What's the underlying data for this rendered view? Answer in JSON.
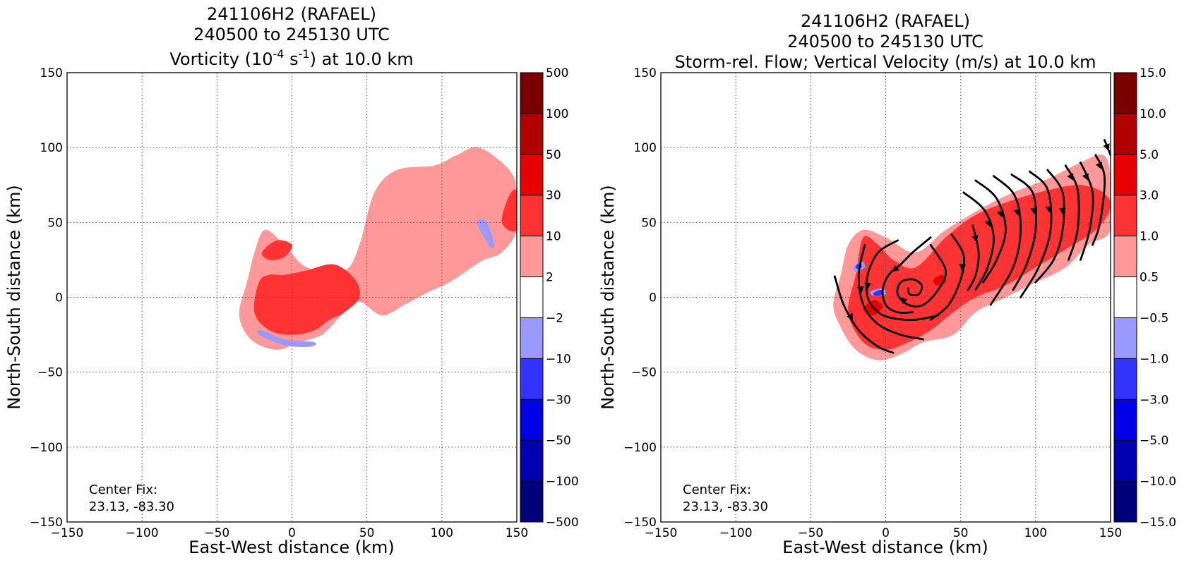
{
  "chart_data": [
    {
      "type": "heatmap",
      "title_lines": [
        "241106H2 (RAFAEL)",
        "240500 to 245130 UTC"
      ],
      "title_line3": {
        "prefix": "Vorticity (10",
        "exp1": "-4",
        "mid": " s",
        "exp2": "-1",
        "suffix": ") at 10.0 km"
      },
      "xlabel": "East-West distance (km)",
      "ylabel": "North-South distance (km)",
      "xlim": [
        -150,
        150
      ],
      "ylim": [
        -150,
        150
      ],
      "x_ticks": [
        "−150",
        "−100",
        "−50",
        "0",
        "50",
        "100",
        "150"
      ],
      "y_ticks": [
        "−150",
        "−100",
        "−50",
        "0",
        "50",
        "100",
        "150"
      ],
      "grid": true,
      "center_fix_label": "Center Fix:",
      "center_fix_value": "23.13, -83.30",
      "colorbar": {
        "labels": [
          "500",
          "100",
          "50",
          "30",
          "10",
          "2",
          "−2",
          "−10",
          "−30",
          "−50",
          "−100",
          "−500"
        ],
        "colors": [
          "#7a0000",
          "#b10000",
          "#e60000",
          "#ff3333",
          "#ff9999",
          "#ffffff",
          "#9999ff",
          "#3333ff",
          "#0000e6",
          "#0000b1",
          "#00007a"
        ]
      },
      "regions": [
        {
          "level": "2 to 10",
          "color": "#ff9999",
          "shape": [
            [
              -35,
              -8
            ],
            [
              -30,
              10
            ],
            [
              -25,
              30
            ],
            [
              -18,
              45
            ],
            [
              -5,
              35
            ],
            [
              10,
              20
            ],
            [
              35,
              18
            ],
            [
              45,
              35
            ],
            [
              55,
              70
            ],
            [
              70,
              85
            ],
            [
              95,
              88
            ],
            [
              110,
              95
            ],
            [
              125,
              100
            ],
            [
              145,
              85
            ],
            [
              150,
              70
            ],
            [
              150,
              45
            ],
            [
              140,
              30
            ],
            [
              128,
              25
            ],
            [
              120,
              20
            ],
            [
              105,
              10
            ],
            [
              90,
              3
            ],
            [
              75,
              -5
            ],
            [
              60,
              -12
            ],
            [
              45,
              -3
            ],
            [
              35,
              -10
            ],
            [
              30,
              -15
            ],
            [
              20,
              -25
            ],
            [
              5,
              -30
            ],
            [
              -10,
              -35
            ],
            [
              -25,
              -30
            ],
            [
              -33,
              -20
            ]
          ]
        },
        {
          "level": "10 to 30",
          "color": "#ff3333",
          "shape": [
            [
              -25,
              -10
            ],
            [
              -22,
              10
            ],
            [
              -15,
              15
            ],
            [
              -5,
              15
            ],
            [
              10,
              18
            ],
            [
              28,
              22
            ],
            [
              42,
              12
            ],
            [
              45,
              0
            ],
            [
              35,
              -10
            ],
            [
              25,
              -15
            ],
            [
              15,
              -22
            ],
            [
              0,
              -25
            ],
            [
              -15,
              -22
            ]
          ]
        },
        {
          "level": "10 to 30",
          "color": "#ff3333",
          "shape": [
            [
              -20,
              30
            ],
            [
              -10,
              38
            ],
            [
              0,
              35
            ],
            [
              -5,
              27
            ],
            [
              -15,
              25
            ]
          ]
        },
        {
          "level": "10 to 30",
          "color": "#ff3333",
          "shape": [
            [
              140,
              50
            ],
            [
              150,
              45
            ],
            [
              150,
              70
            ],
            [
              145,
              68
            ]
          ]
        },
        {
          "level": "-10 to -2",
          "color": "#9999ff",
          "shape": [
            [
              -20,
              -22
            ],
            [
              -5,
              -28
            ],
            [
              15,
              -30
            ],
            [
              12,
              -33
            ],
            [
              -5,
              -32
            ],
            [
              -22,
              -25
            ]
          ]
        },
        {
          "level": "-10 to -2",
          "color": "#9999ff",
          "shape": [
            [
              125,
              52
            ],
            [
              130,
              50
            ],
            [
              135,
              35
            ],
            [
              132,
              34
            ],
            [
              124,
              48
            ]
          ]
        }
      ]
    },
    {
      "type": "heatmap",
      "title_lines": [
        "241106H2 (RAFAEL)",
        "240500 to 245130 UTC",
        "Storm-rel. Flow; Vertical Velocity (m/s) at 10.0 km"
      ],
      "xlabel": "East-West distance (km)",
      "ylabel": "North-South distance (km)",
      "xlim": [
        -150,
        150
      ],
      "ylim": [
        -150,
        150
      ],
      "x_ticks": [
        "−150",
        "−100",
        "−50",
        "0",
        "50",
        "100",
        "150"
      ],
      "y_ticks": [
        "−150",
        "−100",
        "−50",
        "0",
        "50",
        "100",
        "150"
      ],
      "grid": true,
      "center_fix_label": "Center Fix:",
      "center_fix_value": "23.13, -83.30",
      "colorbar": {
        "labels": [
          "15.0",
          "10.0",
          "5.0",
          "3.0",
          "1.0",
          "0.5",
          "−0.5",
          "−1.0",
          "−3.0",
          "−5.0",
          "−10.0",
          "−15.0"
        ],
        "colors": [
          "#7a0000",
          "#b10000",
          "#e60000",
          "#ff3333",
          "#ff9999",
          "#ffffff",
          "#9999ff",
          "#3333ff",
          "#0000e6",
          "#0000b1",
          "#00007a"
        ]
      },
      "regions": [
        {
          "level": "0.5 to 1.0",
          "color": "#ff9999",
          "shape": [
            [
              -35,
              -5
            ],
            [
              -30,
              15
            ],
            [
              -25,
              35
            ],
            [
              -15,
              45
            ],
            [
              0,
              40
            ],
            [
              20,
              30
            ],
            [
              40,
              45
            ],
            [
              65,
              60
            ],
            [
              85,
              70
            ],
            [
              110,
              80
            ],
            [
              130,
              90
            ],
            [
              145,
              95
            ],
            [
              150,
              80
            ],
            [
              150,
              45
            ],
            [
              135,
              35
            ],
            [
              120,
              20
            ],
            [
              100,
              10
            ],
            [
              80,
              0
            ],
            [
              60,
              -10
            ],
            [
              45,
              -25
            ],
            [
              25,
              -30
            ],
            [
              10,
              -38
            ],
            [
              -5,
              -42
            ],
            [
              -20,
              -35
            ],
            [
              -30,
              -20
            ]
          ]
        },
        {
          "level": "1.0 to 3.0",
          "color": "#ff3333",
          "shape": [
            [
              -25,
              -10
            ],
            [
              -20,
              15
            ],
            [
              -15,
              40
            ],
            [
              -5,
              35
            ],
            [
              5,
              25
            ],
            [
              20,
              20
            ],
            [
              40,
              40
            ],
            [
              60,
              55
            ],
            [
              85,
              65
            ],
            [
              110,
              72
            ],
            [
              130,
              75
            ],
            [
              145,
              70
            ],
            [
              150,
              60
            ],
            [
              140,
              45
            ],
            [
              120,
              32
            ],
            [
              100,
              20
            ],
            [
              80,
              8
            ],
            [
              60,
              0
            ],
            [
              45,
              -10
            ],
            [
              30,
              -22
            ],
            [
              15,
              -30
            ],
            [
              0,
              -35
            ],
            [
              -15,
              -30
            ]
          ]
        },
        {
          "level": "3.0 to 5.0",
          "color": "#e60000",
          "shape": [
            [
              -15,
              -8
            ],
            [
              -8,
              -2
            ],
            [
              -2,
              -6
            ],
            [
              -8,
              -12
            ]
          ]
        },
        {
          "level": "3.0 to 5.0",
          "color": "#e60000",
          "shape": [
            [
              32,
              12
            ],
            [
              38,
              15
            ],
            [
              40,
              10
            ],
            [
              34,
              8
            ]
          ]
        },
        {
          "level": "-1.0 to -0.5",
          "color": "#9999ff",
          "shape": [
            [
              -10,
              4
            ],
            [
              -2,
              6
            ],
            [
              0,
              2
            ],
            [
              -8,
              1
            ]
          ]
        },
        {
          "level": "-1.0 to -0.5",
          "color": "#9999ff",
          "shape": [
            [
              -22,
              20
            ],
            [
              -16,
              24
            ],
            [
              -14,
              20
            ],
            [
              -20,
              17
            ]
          ]
        },
        {
          "level": "-3.0 to -1.0",
          "color": "#3333ff",
          "shape": [
            [
              -8,
              3
            ],
            [
              -3,
              5
            ],
            [
              -2,
              2
            ],
            [
              -7,
              1
            ]
          ]
        },
        {
          "level": "-3.0 to -1.0",
          "color": "#3333ff",
          "shape": [
            [
              -20,
              21
            ],
            [
              -17,
              23
            ],
            [
              -16,
              20
            ],
            [
              -19,
              19
            ]
          ]
        }
      ],
      "streamlines": [
        [
          [
            -34,
            14
          ],
          [
            -28,
            -5
          ],
          [
            -18,
            -22
          ],
          [
            -5,
            -33
          ],
          [
            5,
            -37
          ]
        ],
        [
          [
            -14,
            35
          ],
          [
            -18,
            15
          ],
          [
            -15,
            -5
          ],
          [
            -5,
            -18
          ],
          [
            10,
            -25
          ],
          [
            25,
            -28
          ]
        ],
        [
          [
            8,
            38
          ],
          [
            -5,
            30
          ],
          [
            -12,
            15
          ],
          [
            -12,
            0
          ],
          [
            -5,
            -10
          ],
          [
            5,
            -14
          ],
          [
            20,
            -15
          ],
          [
            35,
            -12
          ]
        ],
        [
          [
            30,
            40
          ],
          [
            18,
            30
          ],
          [
            10,
            22
          ],
          [
            2,
            15
          ],
          [
            -2,
            5
          ],
          [
            0,
            -5
          ],
          [
            8,
            -10
          ],
          [
            18,
            -10
          ]
        ],
        [
          [
            30,
            35
          ],
          [
            40,
            18
          ],
          [
            35,
            5
          ],
          [
            25,
            -5
          ],
          [
            15,
            -5
          ],
          [
            8,
            2
          ],
          [
            10,
            10
          ],
          [
            18,
            12
          ],
          [
            24,
            8
          ],
          [
            22,
            2
          ],
          [
            16,
            2
          ],
          [
            15,
            6
          ]
        ],
        [
          [
            44,
            42
          ],
          [
            52,
            28
          ],
          [
            50,
            12
          ],
          [
            42,
            -5
          ],
          [
            30,
            -15
          ]
        ],
        [
          [
            58,
            48
          ],
          [
            62,
            30
          ],
          [
            60,
            15
          ],
          [
            55,
            5
          ]
        ],
        [
          [
            52,
            70
          ],
          [
            66,
            58
          ],
          [
            72,
            40
          ],
          [
            68,
            20
          ],
          [
            60,
            5
          ]
        ],
        [
          [
            60,
            78
          ],
          [
            74,
            66
          ],
          [
            80,
            45
          ],
          [
            74,
            25
          ],
          [
            65,
            10
          ]
        ],
        [
          [
            72,
            81
          ],
          [
            86,
            68
          ],
          [
            90,
            45
          ],
          [
            85,
            20
          ],
          [
            70,
            -5
          ]
        ],
        [
          [
            84,
            82
          ],
          [
            98,
            70
          ],
          [
            100,
            45
          ],
          [
            94,
            22
          ],
          [
            85,
            5
          ]
        ],
        [
          [
            96,
            84
          ],
          [
            108,
            72
          ],
          [
            110,
            45
          ],
          [
            102,
            20
          ],
          [
            90,
            0
          ]
        ],
        [
          [
            108,
            85
          ],
          [
            118,
            70
          ],
          [
            118,
            45
          ],
          [
            112,
            25
          ],
          [
            100,
            10
          ]
        ],
        [
          [
            120,
            88
          ],
          [
            128,
            72
          ],
          [
            128,
            45
          ],
          [
            122,
            25
          ]
        ],
        [
          [
            130,
            90
          ],
          [
            138,
            70
          ],
          [
            136,
            45
          ],
          [
            130,
            25
          ]
        ],
        [
          [
            140,
            95
          ],
          [
            146,
            80
          ],
          [
            143,
            50
          ],
          [
            138,
            35
          ]
        ],
        [
          [
            146,
            105
          ],
          [
            150,
            95
          ]
        ]
      ]
    }
  ]
}
